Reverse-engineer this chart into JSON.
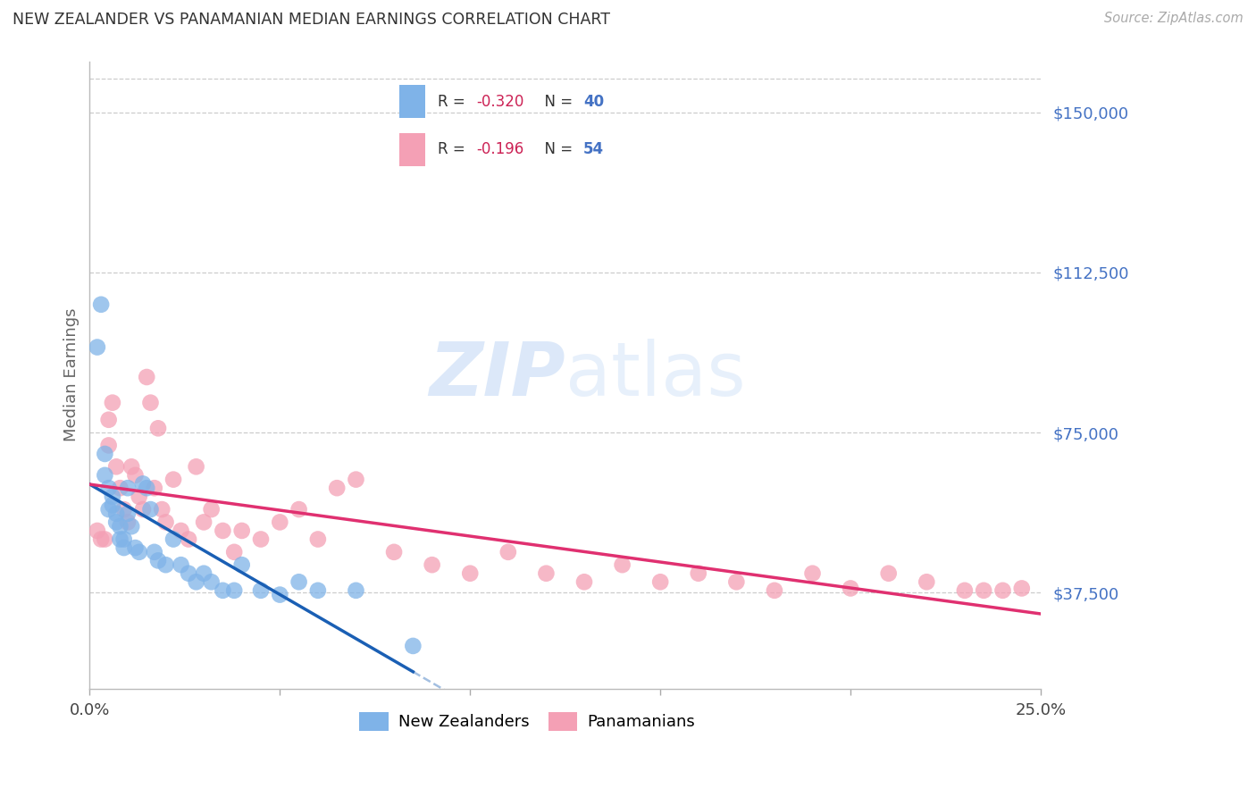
{
  "title": "NEW ZEALANDER VS PANAMANIAN MEDIAN EARNINGS CORRELATION CHART",
  "source": "Source: ZipAtlas.com",
  "ylabel": "Median Earnings",
  "yticks": [
    37500,
    75000,
    112500,
    150000
  ],
  "ytick_labels": [
    "$37,500",
    "$75,000",
    "$112,500",
    "$150,000"
  ],
  "xmin": 0.0,
  "xmax": 0.25,
  "ymin": 15000,
  "ymax": 162000,
  "legend1_R": "-0.320",
  "legend1_N": "40",
  "legend2_R": "-0.196",
  "legend2_N": "54",
  "nz_color": "#7fb3e8",
  "pan_color": "#f4a0b5",
  "nz_line_color": "#1a5fb4",
  "pan_line_color": "#e03070",
  "nz_scatter_x": [
    0.002,
    0.003,
    0.004,
    0.004,
    0.005,
    0.005,
    0.006,
    0.006,
    0.007,
    0.007,
    0.008,
    0.008,
    0.009,
    0.009,
    0.01,
    0.01,
    0.011,
    0.012,
    0.013,
    0.014,
    0.015,
    0.016,
    0.017,
    0.018,
    0.02,
    0.022,
    0.024,
    0.026,
    0.028,
    0.03,
    0.032,
    0.035,
    0.038,
    0.04,
    0.045,
    0.05,
    0.055,
    0.06,
    0.07,
    0.085
  ],
  "nz_scatter_y": [
    95000,
    105000,
    65000,
    70000,
    62000,
    57000,
    58000,
    60000,
    56000,
    54000,
    53000,
    50000,
    50000,
    48000,
    56000,
    62000,
    53000,
    48000,
    47000,
    63000,
    62000,
    57000,
    47000,
    45000,
    44000,
    50000,
    44000,
    42000,
    40000,
    42000,
    40000,
    38000,
    38000,
    44000,
    38000,
    37000,
    40000,
    38000,
    38000,
    25000
  ],
  "pan_scatter_x": [
    0.002,
    0.003,
    0.004,
    0.005,
    0.005,
    0.006,
    0.007,
    0.008,
    0.009,
    0.01,
    0.011,
    0.012,
    0.013,
    0.014,
    0.015,
    0.016,
    0.017,
    0.018,
    0.019,
    0.02,
    0.022,
    0.024,
    0.026,
    0.028,
    0.03,
    0.032,
    0.035,
    0.038,
    0.04,
    0.045,
    0.05,
    0.055,
    0.06,
    0.065,
    0.07,
    0.08,
    0.09,
    0.1,
    0.11,
    0.12,
    0.13,
    0.14,
    0.15,
    0.16,
    0.17,
    0.18,
    0.19,
    0.2,
    0.21,
    0.22,
    0.23,
    0.235,
    0.24,
    0.245
  ],
  "pan_scatter_y": [
    52000,
    50000,
    50000,
    78000,
    72000,
    82000,
    67000,
    62000,
    57000,
    54000,
    67000,
    65000,
    60000,
    57000,
    88000,
    82000,
    62000,
    76000,
    57000,
    54000,
    64000,
    52000,
    50000,
    67000,
    54000,
    57000,
    52000,
    47000,
    52000,
    50000,
    54000,
    57000,
    50000,
    62000,
    64000,
    47000,
    44000,
    42000,
    47000,
    42000,
    40000,
    44000,
    40000,
    42000,
    40000,
    38000,
    42000,
    38500,
    42000,
    40000,
    38000,
    38000,
    38000,
    38500
  ]
}
